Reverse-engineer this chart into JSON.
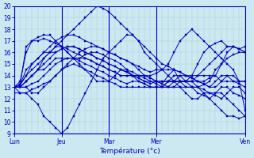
{
  "title": "",
  "xlabel": "Température (°c)",
  "ylabel": "",
  "bg_color": "#cce8f0",
  "line_color": "#0000bb",
  "marker": "s",
  "markersize": 1.5,
  "linewidth": 0.7,
  "ylim": [
    9,
    20
  ],
  "yticks": [
    9,
    10,
    11,
    12,
    13,
    14,
    15,
    16,
    17,
    18,
    19,
    20
  ],
  "n_points": 40,
  "xtick_labels": [
    "Lun",
    "Jeu",
    "Mar",
    "Mer",
    "Ven"
  ],
  "xtick_positions": [
    0,
    8,
    16,
    24,
    39
  ],
  "lines": [
    [
      13.0,
      13.2,
      16.5,
      17.0,
      17.0,
      17.2,
      17.0,
      16.8,
      16.5,
      16.3,
      16.0,
      15.8,
      15.5,
      15.3,
      15.0,
      14.8,
      14.5,
      14.3,
      14.0,
      14.0,
      14.0,
      14.0,
      14.0,
      14.0,
      14.2,
      14.5,
      15.0,
      16.0,
      17.0,
      17.5,
      18.0,
      17.5,
      17.0,
      16.5,
      16.0,
      15.5,
      15.0,
      14.5,
      13.5,
      11.0
    ],
    [
      13.0,
      13.0,
      13.5,
      14.0,
      14.5,
      15.0,
      15.5,
      16.0,
      16.3,
      16.5,
      16.5,
      16.3,
      16.0,
      15.8,
      15.5,
      15.3,
      15.0,
      14.8,
      14.5,
      14.3,
      14.0,
      14.0,
      14.0,
      13.8,
      13.5,
      13.5,
      13.5,
      13.5,
      13.5,
      13.5,
      13.5,
      14.0,
      14.5,
      15.0,
      15.5,
      16.0,
      16.5,
      16.5,
      16.3,
      16.0
    ],
    [
      13.0,
      13.2,
      14.0,
      15.0,
      15.5,
      16.0,
      16.0,
      16.0,
      16.3,
      16.5,
      16.5,
      16.3,
      16.0,
      15.8,
      15.5,
      15.3,
      15.0,
      14.8,
      14.5,
      14.3,
      14.0,
      13.8,
      13.5,
      13.5,
      13.5,
      13.3,
      14.0,
      14.5,
      13.5,
      13.0,
      13.0,
      13.0,
      13.2,
      13.5,
      14.5,
      15.0,
      15.5,
      15.8,
      16.0,
      16.0
    ],
    [
      13.0,
      13.0,
      13.0,
      12.5,
      12.5,
      13.0,
      13.5,
      14.0,
      14.5,
      15.0,
      15.5,
      16.0,
      16.3,
      16.5,
      16.5,
      16.3,
      16.0,
      15.8,
      15.5,
      15.3,
      15.0,
      14.5,
      14.0,
      13.8,
      13.5,
      13.3,
      13.0,
      13.0,
      13.0,
      13.0,
      13.0,
      13.0,
      12.8,
      12.5,
      12.3,
      12.0,
      12.5,
      13.0,
      13.0,
      12.5
    ],
    [
      13.0,
      12.5,
      12.5,
      12.0,
      11.5,
      10.5,
      10.0,
      9.5,
      9.0,
      9.5,
      10.5,
      11.5,
      12.5,
      13.5,
      14.5,
      15.5,
      16.0,
      16.5,
      17.0,
      17.5,
      17.5,
      17.0,
      16.0,
      15.5,
      15.0,
      14.5,
      14.0,
      13.5,
      13.0,
      12.5,
      12.0,
      12.0,
      12.5,
      12.5,
      12.5,
      12.5,
      12.0,
      11.5,
      11.0,
      10.5
    ],
    [
      13.0,
      13.2,
      14.0,
      14.5,
      15.0,
      15.5,
      16.0,
      16.5,
      17.0,
      17.5,
      18.0,
      18.5,
      19.0,
      19.5,
      20.0,
      19.8,
      19.5,
      19.0,
      18.5,
      18.0,
      17.5,
      17.0,
      16.5,
      16.0,
      15.5,
      15.0,
      14.8,
      14.5,
      14.3,
      14.0,
      13.8,
      13.5,
      13.3,
      13.0,
      13.0,
      13.5,
      14.0,
      14.0,
      13.5,
      13.5
    ],
    [
      13.0,
      13.2,
      14.5,
      15.0,
      15.5,
      16.0,
      16.5,
      17.0,
      17.3,
      17.5,
      17.5,
      17.3,
      17.0,
      16.8,
      16.5,
      16.3,
      16.0,
      15.8,
      15.5,
      15.3,
      15.0,
      14.8,
      14.5,
      14.3,
      14.5,
      14.5,
      14.5,
      14.5,
      14.3,
      14.0,
      14.0,
      14.0,
      14.0,
      14.0,
      14.0,
      13.5,
      13.5,
      13.5,
      13.5,
      13.5
    ],
    [
      13.0,
      13.0,
      13.5,
      14.0,
      14.5,
      15.5,
      16.0,
      16.5,
      16.5,
      16.0,
      15.5,
      15.0,
      14.5,
      14.0,
      13.5,
      13.5,
      13.5,
      14.0,
      14.5,
      14.5,
      14.3,
      14.0,
      13.8,
      13.5,
      13.3,
      13.0,
      13.0,
      13.5,
      14.0,
      13.5,
      13.0,
      12.5,
      12.3,
      12.0,
      12.5,
      13.0,
      13.0,
      12.5,
      12.3,
      12.0
    ],
    [
      13.0,
      13.0,
      13.5,
      14.0,
      14.5,
      14.5,
      15.0,
      15.5,
      15.5,
      15.5,
      15.5,
      15.5,
      15.5,
      15.3,
      15.0,
      14.8,
      14.5,
      14.3,
      14.0,
      14.0,
      14.0,
      13.8,
      13.5,
      13.3,
      13.5,
      13.5,
      13.5,
      14.0,
      14.0,
      14.0,
      13.8,
      13.5,
      13.3,
      13.0,
      13.5,
      14.0,
      14.0,
      13.5,
      13.3,
      13.0
    ],
    [
      13.0,
      13.0,
      13.0,
      13.3,
      13.5,
      14.0,
      14.5,
      15.0,
      15.3,
      15.5,
      15.5,
      15.3,
      15.0,
      14.8,
      14.5,
      14.3,
      14.0,
      13.8,
      13.5,
      13.3,
      13.5,
      13.5,
      13.3,
      13.0,
      13.0,
      13.0,
      13.5,
      13.5,
      13.5,
      13.5,
      13.5,
      13.5,
      13.5,
      13.8,
      14.0,
      15.0,
      16.0,
      16.5,
      16.3,
      16.5
    ],
    [
      12.5,
      12.5,
      12.5,
      12.8,
      13.0,
      13.3,
      13.5,
      14.0,
      14.5,
      14.8,
      15.0,
      14.8,
      14.5,
      14.3,
      14.0,
      13.8,
      13.5,
      13.3,
      13.0,
      13.0,
      13.0,
      13.0,
      13.0,
      13.0,
      13.0,
      13.0,
      13.5,
      13.5,
      13.5,
      13.5,
      14.0,
      15.0,
      16.0,
      16.5,
      16.8,
      17.0,
      16.5,
      16.5,
      16.3,
      16.0
    ],
    [
      13.0,
      13.5,
      16.0,
      17.0,
      17.3,
      17.5,
      17.5,
      17.0,
      16.5,
      16.0,
      15.5,
      15.5,
      15.8,
      16.0,
      16.0,
      15.8,
      15.5,
      15.3,
      15.0,
      14.5,
      14.0,
      13.5,
      13.3,
      13.0,
      13.0,
      13.0,
      13.0,
      13.0,
      13.5,
      13.5,
      13.5,
      13.0,
      12.5,
      12.0,
      11.5,
      11.0,
      10.5,
      10.5,
      10.3,
      10.5
    ]
  ]
}
